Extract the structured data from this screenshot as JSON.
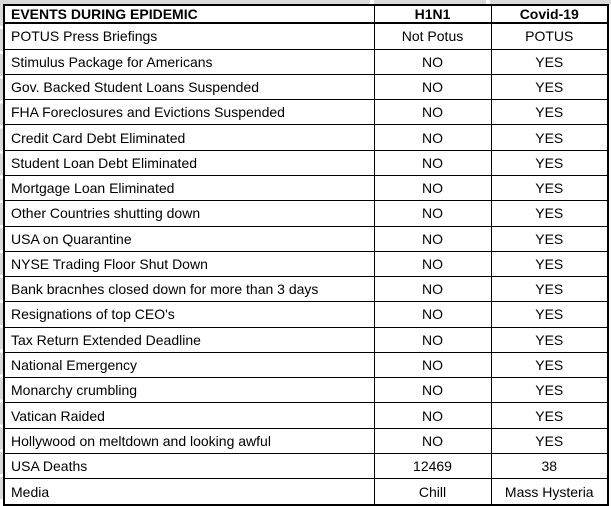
{
  "colors": {
    "outside_fill": "#d9d9d9",
    "grid_border": "#000000",
    "cell_background": "#ffffff",
    "text": "#000000"
  },
  "table": {
    "header": {
      "event": "EVENTS DURING EPIDEMIC",
      "h1n1": "H1N1",
      "covid": "Covid-19"
    },
    "rows": [
      {
        "event": "POTUS Press Briefings",
        "h1n1": "Not Potus",
        "covid": "POTUS"
      },
      {
        "event": "Stimulus Package for Americans",
        "h1n1": "NO",
        "covid": "YES"
      },
      {
        "event": "Gov. Backed Student Loans Suspended",
        "h1n1": "NO",
        "covid": "YES"
      },
      {
        "event": "FHA Foreclosures and Evictions Suspended",
        "h1n1": "NO",
        "covid": "YES"
      },
      {
        "event": "Credit Card Debt Eliminated",
        "h1n1": "NO",
        "covid": "YES"
      },
      {
        "event": "Student Loan Debt Eliminated",
        "h1n1": "NO",
        "covid": "YES"
      },
      {
        "event": "Mortgage Loan Eliminated",
        "h1n1": "NO",
        "covid": "YES"
      },
      {
        "event": "Other Countries shutting down",
        "h1n1": "NO",
        "covid": "YES"
      },
      {
        "event": "USA on Quarantine",
        "h1n1": "NO",
        "covid": "YES"
      },
      {
        "event": "NYSE Trading Floor Shut Down",
        "h1n1": "NO",
        "covid": "YES"
      },
      {
        "event": "Bank bracnhes closed down for more than 3 days",
        "h1n1": "NO",
        "covid": "YES"
      },
      {
        "event": "Resignations of top CEO's",
        "h1n1": "NO",
        "covid": "YES"
      },
      {
        "event": "Tax Return Extended Deadline",
        "h1n1": "NO",
        "covid": "YES"
      },
      {
        "event": "National Emergency",
        "h1n1": "NO",
        "covid": "YES"
      },
      {
        "event": "Monarchy crumbling",
        "h1n1": "NO",
        "covid": "YES"
      },
      {
        "event": "Vatican Raided",
        "h1n1": "NO",
        "covid": "YES"
      },
      {
        "event": "Hollywood on meltdown and looking awful",
        "h1n1": "NO",
        "covid": "YES"
      },
      {
        "event": "USA Deaths",
        "h1n1": "12469",
        "covid": "38"
      },
      {
        "event": "Media",
        "h1n1": "Chill",
        "covid": "Mass Hysteria"
      }
    ]
  }
}
